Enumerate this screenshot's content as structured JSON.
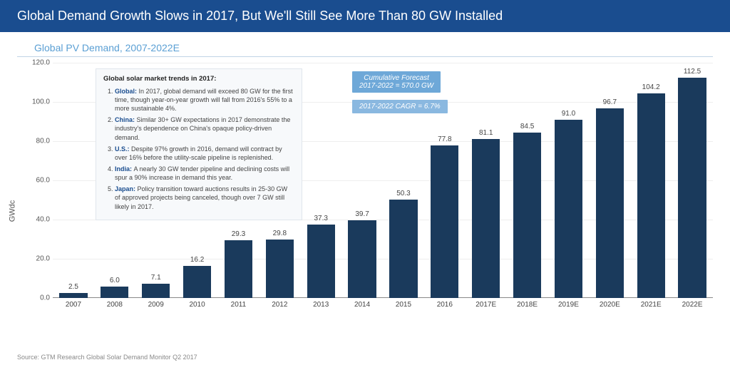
{
  "header": {
    "title": "Global Demand Growth Slows in 2017, But We'll Still See More Than 80 GW Installed",
    "subtitle": "Global PV Demand, 2007-2022E"
  },
  "chart": {
    "type": "bar",
    "y_label": "GWdc",
    "ylim": [
      0,
      120
    ],
    "ytick_step": 20,
    "yticks": [
      "0.0",
      "20.0",
      "40.0",
      "60.0",
      "80.0",
      "100.0",
      "120.0"
    ],
    "bar_color": "#1a3a5c",
    "grid_color": "#eeeeee",
    "baseline_color": "#888888",
    "background_color": "#ffffff",
    "label_fontsize": 10,
    "categories": [
      "2007",
      "2008",
      "2009",
      "2010",
      "2011",
      "2012",
      "2013",
      "2014",
      "2015",
      "2016",
      "2017E",
      "2018E",
      "2019E",
      "2020E",
      "2021E",
      "2022E"
    ],
    "values": [
      2.5,
      6.0,
      7.1,
      16.2,
      29.3,
      29.8,
      37.3,
      39.7,
      50.3,
      77.8,
      81.1,
      84.5,
      91.0,
      96.7,
      104.2,
      112.5
    ]
  },
  "annotations": {
    "box_title": "Global solar market trends in 2017:",
    "items": [
      {
        "k": "Global:",
        "t": "In 2017, global demand will exceed 80 GW for the first time, though year-on-year growth will fall from 2016's 55% to a more sustainable 4%."
      },
      {
        "k": "China:",
        "t": "Similar 30+ GW expectations in 2017 demonstrate the industry's dependence on China's opaque policy-driven demand."
      },
      {
        "k": "U.S.:",
        "t": "Despite 97% growth in 2016, demand will contract by over 16% before the utility-scale pipeline is replenished."
      },
      {
        "k": "India:",
        "t": "A nearly 30 GW tender pipeline and declining costs will spur a 90% increase in demand this year."
      },
      {
        "k": "Japan:",
        "t": "Policy transition toward auctions results in 25-30 GW of approved projects being canceled, though over 7 GW still likely in 2017."
      }
    ],
    "callout1_l1": "Cumulative Forecast",
    "callout1_l2": "2017-2022 = 570.0 GW",
    "callout2": "2017-2022 CAGR = 6.7%",
    "callout1_bg": "#6ea8d8",
    "callout2_bg": "#8ab8e0"
  },
  "source": "Source: GTM Research Global Solar Demand Monitor Q2 2017"
}
